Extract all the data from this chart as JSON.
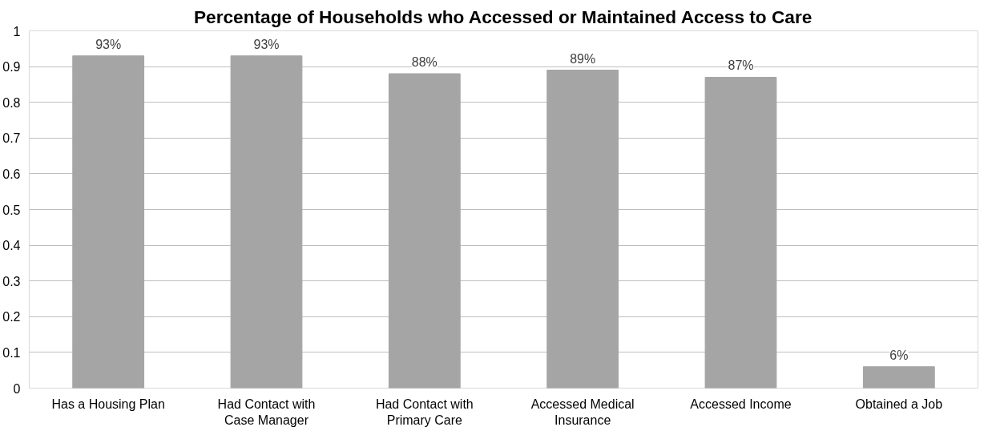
{
  "chart_data": {
    "type": "bar",
    "title": "Percentage of Households who Accessed or Maintained Access to Care",
    "categories": [
      "Has a Housing Plan",
      "Had Contact with Case Manager",
      "Had Contact with Primary Care",
      "Accessed Medical Insurance",
      "Accessed Income",
      "Obtained a Job"
    ],
    "values": [
      0.93,
      0.93,
      0.88,
      0.89,
      0.87,
      0.06
    ],
    "value_labels": [
      "93%",
      "93%",
      "88%",
      "89%",
      "87%",
      "6%"
    ],
    "color": "#a5a5a5",
    "ylim": [
      0,
      1
    ],
    "yticks": [
      0,
      0.1,
      0.2,
      0.3,
      0.4,
      0.5,
      0.6,
      0.7,
      0.8,
      0.9,
      1
    ],
    "grid": "y"
  }
}
